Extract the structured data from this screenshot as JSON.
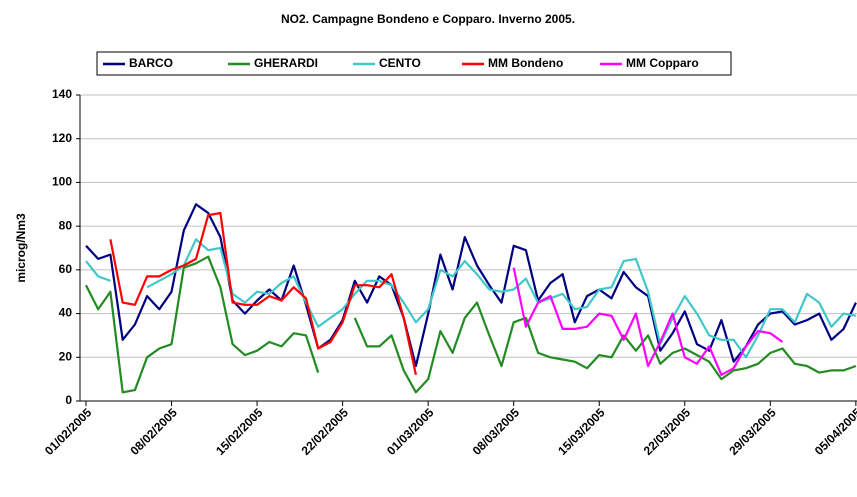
{
  "chart_data": {
    "type": "line",
    "title": "NO2. Campagne Bondeno e Copparo. Inverno 2005.",
    "ylabel": "microg/Nm3",
    "x": [
      "01/02/2005",
      "02/02/2005",
      "03/02/2005",
      "04/02/2005",
      "05/02/2005",
      "06/02/2005",
      "07/02/2005",
      "08/02/2005",
      "09/02/2005",
      "10/02/2005",
      "11/02/2005",
      "12/02/2005",
      "13/02/2005",
      "14/02/2005",
      "15/02/2005",
      "16/02/2005",
      "17/02/2005",
      "18/02/2005",
      "19/02/2005",
      "20/02/2005",
      "21/02/2005",
      "22/02/2005",
      "23/02/2005",
      "24/02/2005",
      "25/02/2005",
      "26/02/2005",
      "27/02/2005",
      "28/02/2005",
      "01/03/2005",
      "02/03/2005",
      "03/03/2005",
      "04/03/2005",
      "05/03/2005",
      "06/03/2005",
      "07/03/2005",
      "08/03/2005",
      "09/03/2005",
      "10/03/2005",
      "11/03/2005",
      "12/03/2005",
      "13/03/2005",
      "14/03/2005",
      "15/03/2005",
      "16/03/2005",
      "17/03/2005",
      "18/03/2005",
      "19/03/2005",
      "20/03/2005",
      "21/03/2005",
      "22/03/2005",
      "23/03/2005",
      "24/03/2005",
      "25/03/2005",
      "26/03/2005",
      "27/03/2005",
      "28/03/2005",
      "29/03/2005",
      "30/03/2005",
      "31/03/2005",
      "01/04/2005",
      "02/04/2005",
      "03/04/2005",
      "04/04/2005",
      "05/04/2005"
    ],
    "xticks": [
      "01/02/2005",
      "08/02/2005",
      "15/02/2005",
      "22/02/2005",
      "01/03/2005",
      "08/03/2005",
      "15/03/2005",
      "22/03/2005",
      "29/03/2005",
      "05/04/2005"
    ],
    "ylim": [
      0,
      140
    ],
    "yticks": [
      0,
      20,
      40,
      60,
      80,
      100,
      120,
      140
    ],
    "grid": true,
    "legend": "top",
    "series": [
      {
        "name": "BARCO",
        "color": "#000080",
        "values": [
          71,
          65,
          67,
          28,
          35,
          48,
          42,
          50,
          78,
          90,
          86,
          75,
          46,
          40,
          46,
          51,
          46,
          62,
          44,
          24,
          28,
          37,
          55,
          45,
          57,
          53,
          38,
          16,
          40,
          67,
          51,
          75,
          62,
          53,
          45,
          71,
          69,
          46,
          54,
          58,
          36,
          48,
          51,
          47,
          59,
          52,
          48,
          23,
          31,
          41,
          26,
          23,
          37,
          18,
          25,
          35,
          40,
          41,
          35,
          37,
          40,
          28,
          33,
          45
        ]
      },
      {
        "name": "GHERARDI",
        "color": "#228b22",
        "values": [
          53,
          42,
          50,
          4,
          5,
          20,
          24,
          26,
          61,
          63,
          66,
          52,
          26,
          21,
          23,
          27,
          25,
          31,
          30,
          13,
          null,
          null,
          38,
          25,
          25,
          30,
          14,
          4,
          10,
          32,
          22,
          38,
          45,
          30,
          16,
          36,
          38,
          22,
          20,
          19,
          18,
          15,
          21,
          20,
          30,
          23,
          30,
          17,
          22,
          24,
          21,
          18,
          10,
          14,
          15,
          17,
          22,
          24,
          17,
          16,
          13,
          14,
          14,
          16
        ]
      },
      {
        "name": "CENTO",
        "color": "#40c8c8",
        "values": [
          64,
          57,
          55,
          null,
          null,
          52,
          55,
          58,
          62,
          74,
          69,
          70,
          49,
          45,
          50,
          49,
          54,
          57,
          45,
          34,
          38,
          42,
          49,
          55,
          55,
          53,
          45,
          36,
          42,
          60,
          57,
          64,
          58,
          51,
          50,
          51,
          56,
          45,
          47,
          49,
          42,
          43,
          51,
          52,
          64,
          65,
          50,
          26,
          38,
          48,
          40,
          30,
          28,
          28,
          20,
          30,
          42,
          42,
          36,
          49,
          45,
          34,
          40,
          39
        ]
      },
      {
        "name": "MM Bondeno",
        "color": "#ff0000",
        "values": [
          null,
          null,
          74,
          45,
          44,
          57,
          57,
          60,
          62,
          65,
          85,
          86,
          45,
          44,
          44,
          48,
          46,
          52,
          47,
          24,
          27,
          36,
          53,
          53,
          52,
          58,
          38,
          12,
          null,
          null,
          null,
          null,
          null,
          null,
          null,
          null,
          null,
          null,
          null,
          null,
          null,
          null,
          null,
          null,
          null,
          null,
          null,
          null,
          null,
          null,
          null,
          null,
          null,
          null,
          null,
          null,
          null,
          null,
          null,
          null,
          null,
          null,
          null,
          null
        ]
      },
      {
        "name": "MM Copparo",
        "color": "#ff00ff",
        "values": [
          null,
          null,
          null,
          null,
          null,
          null,
          null,
          null,
          null,
          null,
          null,
          null,
          null,
          null,
          null,
          null,
          null,
          null,
          null,
          null,
          null,
          null,
          null,
          null,
          null,
          null,
          null,
          null,
          null,
          null,
          null,
          null,
          null,
          null,
          null,
          61,
          34,
          45,
          48,
          33,
          33,
          34,
          40,
          39,
          28,
          40,
          16,
          27,
          40,
          20,
          17,
          25,
          12,
          15,
          25,
          32,
          31,
          27,
          null,
          null,
          null,
          null,
          null,
          null
        ]
      }
    ]
  }
}
